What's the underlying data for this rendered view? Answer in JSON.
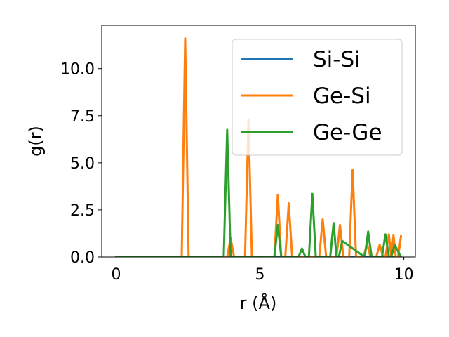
{
  "chart_data": {
    "type": "line",
    "title": "",
    "xlabel": "r (Å)",
    "ylabel": "g(r)",
    "xlim": [
      -0.5,
      10.4
    ],
    "ylim": [
      0,
      12.3
    ],
    "xticks": [
      0,
      5,
      10
    ],
    "xtick_labels": [
      "0",
      "5",
      "10"
    ],
    "yticks": [
      0,
      2.5,
      5,
      7.5,
      10
    ],
    "ytick_labels": [
      "0.0",
      "2.5",
      "5.0",
      "7.5",
      "10.0"
    ],
    "grid": false,
    "legend_position": "top-right",
    "series": [
      {
        "name": "Si-Si",
        "color": "#1f77b4",
        "x": [
          0,
          9.9
        ],
        "y": [
          0,
          0
        ]
      },
      {
        "name": "Ge-Si",
        "color": "#ff7f0e",
        "x": [
          0,
          2.28,
          2.4,
          2.52,
          3.86,
          3.98,
          4.1,
          4.48,
          4.6,
          4.72,
          5.5,
          5.62,
          5.74,
          5.88,
          6.0,
          6.12,
          7.06,
          7.18,
          7.3,
          7.66,
          7.78,
          7.9,
          8.1,
          8.22,
          8.34,
          8.6,
          8.72,
          8.84,
          9.04,
          9.16,
          9.28,
          9.36,
          9.48,
          9.56,
          9.64,
          9.72,
          9.8,
          9.9
        ],
        "y": [
          0,
          0,
          11.6,
          0,
          0,
          1.0,
          0,
          0,
          7.3,
          0,
          0,
          3.3,
          0,
          0,
          2.85,
          0,
          0,
          2.0,
          0,
          0,
          1.7,
          0,
          0,
          4.62,
          0,
          0,
          0.7,
          0,
          0,
          0.65,
          0,
          0,
          1.2,
          0,
          1.15,
          0,
          0,
          1.1
        ]
      },
      {
        "name": "Ge-Ge",
        "color": "#2ca02c",
        "x": [
          0,
          3.74,
          3.86,
          3.98,
          5.5,
          5.62,
          5.74,
          6.34,
          6.46,
          6.58,
          6.7,
          6.82,
          6.94,
          7.44,
          7.56,
          7.66,
          7.74,
          7.86,
          8.64,
          8.76,
          8.88,
          9.24,
          9.36,
          9.48,
          9.56,
          9.68,
          9.9
        ],
        "y": [
          0,
          0,
          6.75,
          0,
          0,
          1.7,
          0,
          0,
          0.45,
          0,
          0,
          3.35,
          0,
          0,
          1.8,
          0,
          0,
          0.85,
          0,
          1.35,
          0,
          0,
          1.2,
          0,
          0,
          0.65,
          0
        ]
      }
    ]
  }
}
